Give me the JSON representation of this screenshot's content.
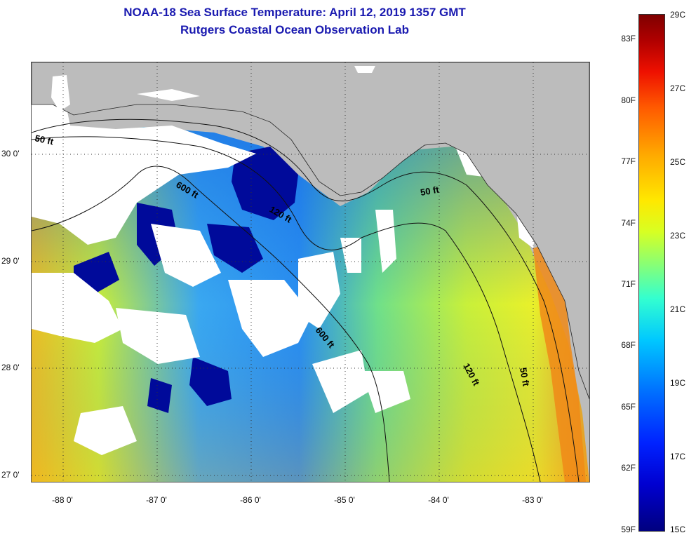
{
  "title": {
    "line1": "NOAA-18 Sea Surface Temperature:  April 12, 2019 1357 GMT",
    "line2": "Rutgers Coastal Ocean Observation Lab"
  },
  "map": {
    "lat_labels": [
      "30 0'",
      "29 0'",
      "28 0'",
      "27 0'"
    ],
    "lon_labels": [
      "-88 0'",
      "-87 0'",
      "-86 0'",
      "-85 0'",
      "-84 0'",
      "-83 0'"
    ],
    "contour_labels": [
      "50 ft",
      "600 ft",
      "120 ft",
      "50 ft",
      "600 ft",
      "120 ft",
      "50 ft"
    ],
    "land_color": "#bcbcbc",
    "cloud_color": "#ffffff"
  },
  "colorbar": {
    "fahrenheit_labels": [
      "83F",
      "80F",
      "77F",
      "74F",
      "71F",
      "68F",
      "65F",
      "62F",
      "59F"
    ],
    "celsius_labels": [
      "29C",
      "27C",
      "25C",
      "23C",
      "21C",
      "19C",
      "17C",
      "15C"
    ]
  }
}
